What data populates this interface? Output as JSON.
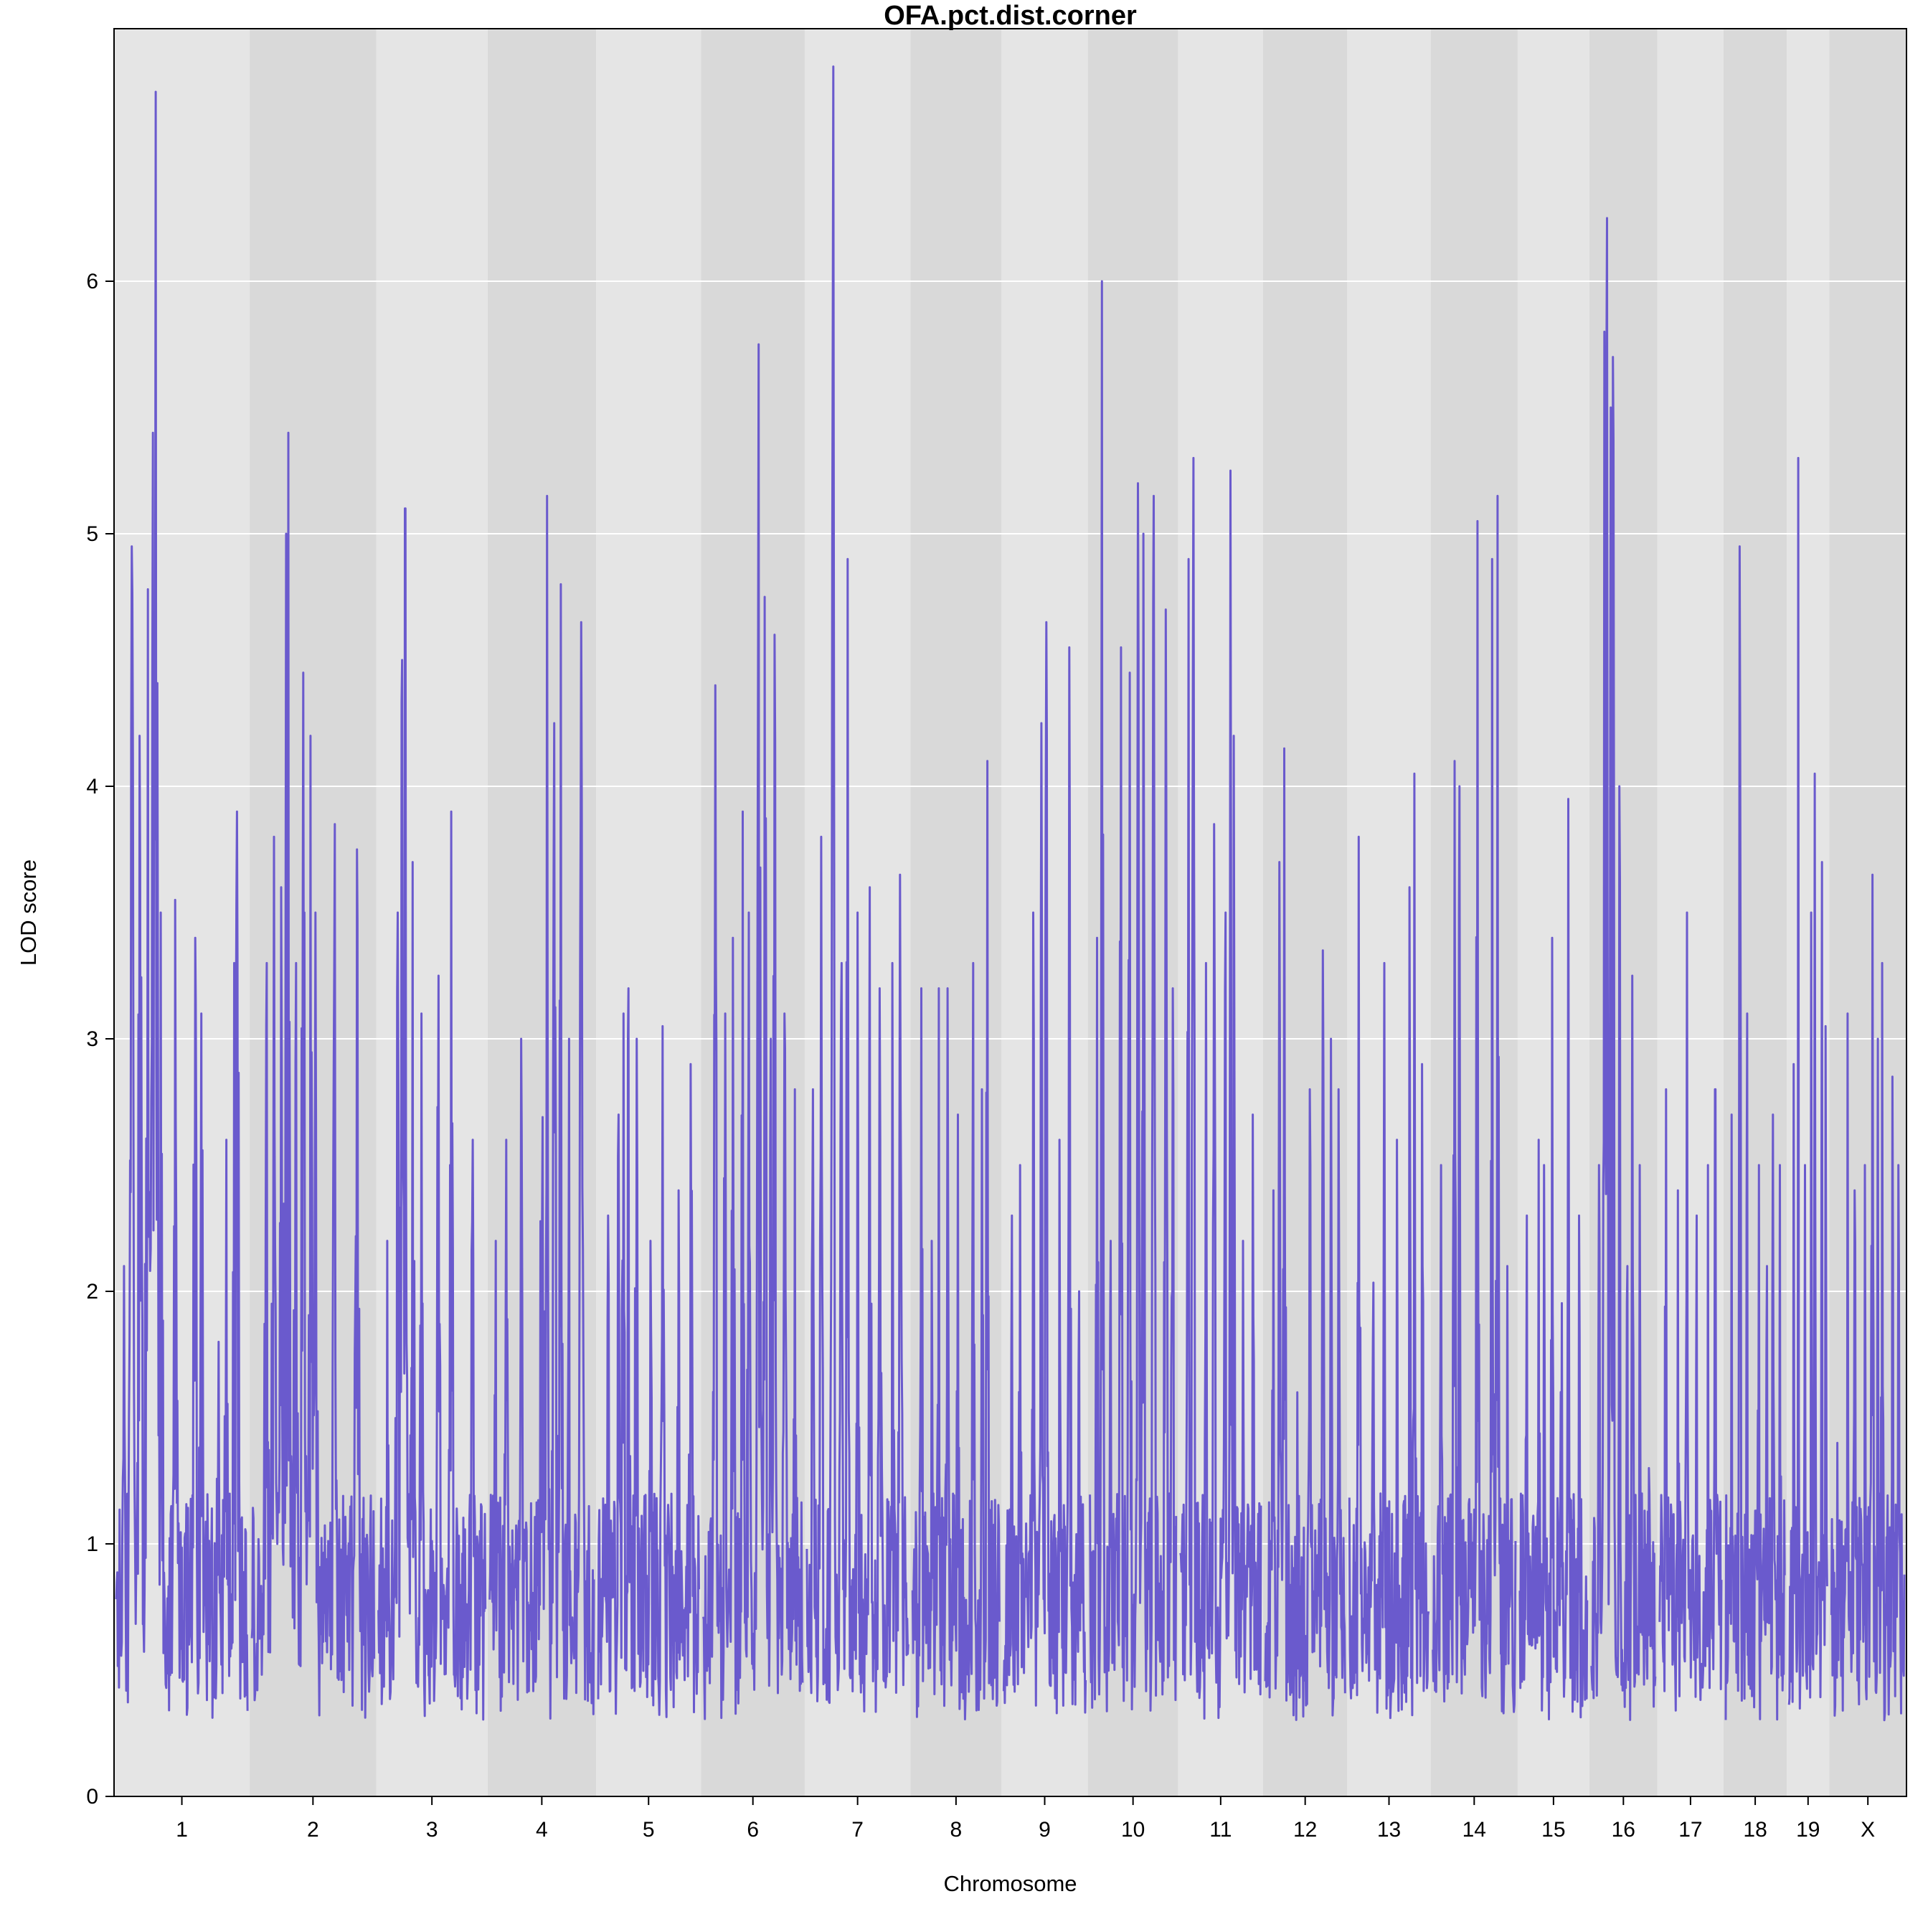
{
  "chart_data": {
    "type": "line",
    "title": "OFA.pct.dist.corner",
    "xlabel": "Chromosome",
    "ylabel": "LOD score",
    "ylim": [
      0,
      7
    ],
    "yticks": [
      0,
      1,
      2,
      3,
      4,
      5,
      6
    ],
    "grid": true,
    "line_color": "#6A5ACD",
    "band_colors": [
      "#E5E5E5",
      "#D9D9D9"
    ],
    "chromosomes": [
      {
        "label": "1",
        "length": 195,
        "peaks": [
          [
            0.06,
            2.1
          ],
          [
            0.12,
            4.95
          ],
          [
            0.18,
            4.2
          ],
          [
            0.24,
            4.78
          ],
          [
            0.28,
            5.4
          ],
          [
            0.3,
            6.75
          ],
          [
            0.34,
            3.5
          ],
          [
            0.45,
            3.55
          ],
          [
            0.6,
            3.4
          ],
          [
            0.65,
            3.1
          ],
          [
            0.78,
            1.8
          ],
          [
            0.84,
            2.6
          ],
          [
            0.9,
            3.3
          ],
          [
            0.92,
            3.9
          ]
        ]
      },
      {
        "label": "2",
        "length": 182,
        "peaks": [
          [
            0.12,
            3.3
          ],
          [
            0.18,
            3.8
          ],
          [
            0.24,
            3.6
          ],
          [
            0.28,
            5.0
          ],
          [
            0.3,
            5.4
          ],
          [
            0.36,
            3.3
          ],
          [
            0.42,
            4.45
          ],
          [
            0.48,
            4.2
          ],
          [
            0.52,
            3.5
          ],
          [
            0.68,
            3.85
          ],
          [
            0.86,
            3.75
          ]
        ]
      },
      {
        "label": "3",
        "length": 160,
        "peaks": [
          [
            0.08,
            2.2
          ],
          [
            0.18,
            3.5
          ],
          [
            0.22,
            4.5
          ],
          [
            0.25,
            5.1
          ],
          [
            0.32,
            3.7
          ],
          [
            0.4,
            3.1
          ],
          [
            0.56,
            3.25
          ],
          [
            0.68,
            3.9
          ],
          [
            0.88,
            2.6
          ]
        ]
      },
      {
        "label": "4",
        "length": 156,
        "peaks": [
          [
            0.06,
            2.2
          ],
          [
            0.16,
            2.6
          ],
          [
            0.3,
            3.0
          ],
          [
            0.5,
            3.8
          ],
          [
            0.55,
            5.15
          ],
          [
            0.62,
            4.25
          ],
          [
            0.68,
            4.8
          ],
          [
            0.76,
            3.0
          ],
          [
            0.88,
            4.65
          ]
        ]
      },
      {
        "label": "5",
        "length": 151,
        "peaks": [
          [
            0.1,
            2.3
          ],
          [
            0.2,
            2.7
          ],
          [
            0.25,
            3.1
          ],
          [
            0.3,
            3.2
          ],
          [
            0.38,
            3.0
          ],
          [
            0.52,
            2.2
          ],
          [
            0.64,
            3.05
          ],
          [
            0.8,
            2.4
          ],
          [
            0.92,
            2.9
          ]
        ]
      },
      {
        "label": "6",
        "length": 149,
        "peaks": [
          [
            0.12,
            4.4
          ],
          [
            0.22,
            3.1
          ],
          [
            0.3,
            3.4
          ],
          [
            0.4,
            3.9
          ],
          [
            0.46,
            3.5
          ],
          [
            0.56,
            5.75
          ],
          [
            0.62,
            4.75
          ],
          [
            0.68,
            3.0
          ],
          [
            0.72,
            4.6
          ],
          [
            0.82,
            3.1
          ],
          [
            0.92,
            2.8
          ]
        ]
      },
      {
        "label": "7",
        "length": 152,
        "peaks": [
          [
            0.06,
            2.8
          ],
          [
            0.14,
            3.8
          ],
          [
            0.26,
            6.85
          ],
          [
            0.34,
            3.3
          ],
          [
            0.4,
            4.9
          ],
          [
            0.5,
            3.5
          ],
          [
            0.62,
            3.6
          ],
          [
            0.72,
            3.2
          ],
          [
            0.84,
            3.3
          ],
          [
            0.92,
            3.65
          ]
        ]
      },
      {
        "label": "8",
        "length": 131,
        "peaks": [
          [
            0.1,
            3.2
          ],
          [
            0.22,
            2.2
          ],
          [
            0.3,
            3.2
          ],
          [
            0.4,
            3.2
          ],
          [
            0.52,
            2.7
          ],
          [
            0.7,
            3.3
          ],
          [
            0.8,
            2.8
          ],
          [
            0.86,
            4.1
          ]
        ]
      },
      {
        "label": "9",
        "length": 124,
        "peaks": [
          [
            0.1,
            2.3
          ],
          [
            0.2,
            2.5
          ],
          [
            0.36,
            3.5
          ],
          [
            0.46,
            4.25
          ],
          [
            0.52,
            4.65
          ],
          [
            0.68,
            2.6
          ],
          [
            0.8,
            4.55
          ],
          [
            0.92,
            2.0
          ]
        ]
      },
      {
        "label": "10",
        "length": 130,
        "peaks": [
          [
            0.08,
            3.4
          ],
          [
            0.14,
            6.0
          ],
          [
            0.24,
            2.2
          ],
          [
            0.36,
            4.55
          ],
          [
            0.46,
            4.45
          ],
          [
            0.56,
            5.2
          ],
          [
            0.62,
            5.0
          ],
          [
            0.74,
            5.15
          ],
          [
            0.88,
            4.7
          ],
          [
            0.96,
            3.2
          ]
        ]
      },
      {
        "label": "11",
        "length": 122,
        "peaks": [
          [
            0.1,
            4.9
          ],
          [
            0.16,
            5.3
          ],
          [
            0.32,
            3.3
          ],
          [
            0.42,
            3.85
          ],
          [
            0.56,
            3.5
          ],
          [
            0.62,
            5.25
          ],
          [
            0.66,
            4.2
          ],
          [
            0.78,
            2.2
          ],
          [
            0.9,
            2.7
          ]
        ]
      },
      {
        "label": "12",
        "length": 121,
        "peaks": [
          [
            0.1,
            2.4
          ],
          [
            0.18,
            3.7
          ],
          [
            0.24,
            4.15
          ],
          [
            0.4,
            1.6
          ],
          [
            0.56,
            2.8
          ],
          [
            0.72,
            3.35
          ],
          [
            0.82,
            3.0
          ],
          [
            0.92,
            2.8
          ]
        ]
      },
      {
        "label": "13",
        "length": 120,
        "peaks": [
          [
            0.12,
            3.8
          ],
          [
            0.3,
            2.8
          ],
          [
            0.44,
            3.3
          ],
          [
            0.6,
            2.6
          ],
          [
            0.76,
            3.6
          ],
          [
            0.82,
            4.05
          ],
          [
            0.92,
            2.9
          ]
        ]
      },
      {
        "label": "14",
        "length": 125,
        "peaks": [
          [
            0.1,
            2.5
          ],
          [
            0.26,
            4.1
          ],
          [
            0.32,
            4.0
          ],
          [
            0.54,
            5.05
          ],
          [
            0.72,
            4.9
          ],
          [
            0.78,
            5.15
          ],
          [
            0.9,
            2.1
          ]
        ]
      },
      {
        "label": "15",
        "length": 103,
        "peaks": [
          [
            0.1,
            2.3
          ],
          [
            0.28,
            2.6
          ],
          [
            0.36,
            2.5
          ],
          [
            0.48,
            3.4
          ],
          [
            0.62,
            2.3
          ],
          [
            0.72,
            3.95
          ],
          [
            0.88,
            2.3
          ]
        ]
      },
      {
        "label": "16",
        "length": 98,
        "peaks": [
          [
            0.12,
            2.5
          ],
          [
            0.2,
            5.8
          ],
          [
            0.24,
            6.25
          ],
          [
            0.3,
            5.5
          ],
          [
            0.34,
            5.7
          ],
          [
            0.44,
            4.0
          ],
          [
            0.56,
            2.1
          ],
          [
            0.64,
            3.25
          ],
          [
            0.76,
            2.5
          ],
          [
            0.9,
            1.3
          ]
        ]
      },
      {
        "label": "17",
        "length": 95,
        "peaks": [
          [
            0.1,
            2.8
          ],
          [
            0.3,
            2.4
          ],
          [
            0.44,
            3.5
          ],
          [
            0.6,
            2.3
          ],
          [
            0.78,
            2.5
          ],
          [
            0.9,
            2.8
          ]
        ]
      },
      {
        "label": "18",
        "length": 91,
        "peaks": [
          [
            0.1,
            2.7
          ],
          [
            0.24,
            4.95
          ],
          [
            0.36,
            3.1
          ],
          [
            0.56,
            2.5
          ],
          [
            0.7,
            2.1
          ],
          [
            0.8,
            2.7
          ],
          [
            0.92,
            2.5
          ]
        ]
      },
      {
        "label": "19",
        "length": 61,
        "peaks": [
          [
            0.12,
            2.9
          ],
          [
            0.24,
            5.3
          ],
          [
            0.42,
            2.5
          ],
          [
            0.58,
            3.5
          ],
          [
            0.68,
            4.05
          ],
          [
            0.86,
            3.7
          ],
          [
            0.96,
            3.05
          ]
        ]
      },
      {
        "label": "X",
        "length": 111,
        "peaks": [
          [
            0.08,
            1.4
          ],
          [
            0.22,
            3.1
          ],
          [
            0.32,
            2.4
          ],
          [
            0.46,
            2.5
          ],
          [
            0.56,
            3.65
          ],
          [
            0.64,
            3.0
          ],
          [
            0.7,
            3.3
          ],
          [
            0.84,
            2.85
          ],
          [
            0.92,
            2.5
          ]
        ]
      }
    ]
  }
}
